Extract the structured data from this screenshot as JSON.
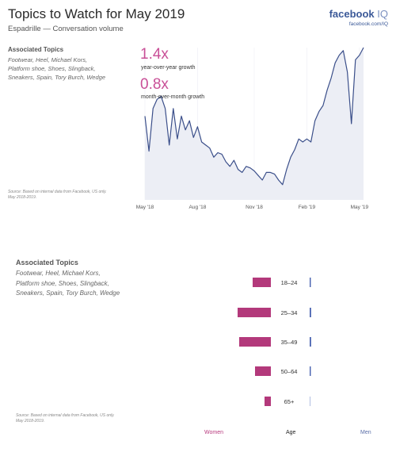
{
  "header": {
    "title": "Topics to Watch for May 2019",
    "subtitle": "Espadrille — Conversation volume",
    "brand_main": "facebook",
    "brand_iq": "IQ",
    "brand_url": "facebook.com/IQ"
  },
  "topics_top": {
    "title": "Associated Topics",
    "lines": [
      "Footwear, Heel, Michael Kors,",
      "Platform shoe, Shoes, Slingback,",
      "Sneakers, Spain, Tory Burch, Wedge"
    ]
  },
  "topics_bottom": {
    "title": "Associated Topics",
    "lines": [
      "Footwear, Heel, Michael Kors,",
      "Platform shoe, Shoes, Slingback,",
      "Sneakers, Spain, Tory Burch, Wedge"
    ]
  },
  "source_top": [
    "Source: Based on internal data from Facebook, US only.",
    "May 2018-2019."
  ],
  "source_bottom": [
    "Source: Based on internal data from Facebook, US only.",
    "May 2018-2019."
  ],
  "kpis": [
    {
      "value": "1.4x",
      "label": "year-over-year growth"
    },
    {
      "value": "0.8x",
      "label": "month-over-month growth"
    }
  ],
  "footer": {
    "women": "Women",
    "age": "Age",
    "men": "Men"
  },
  "colors": {
    "line": "#3b4f8a",
    "area": "#eceef5",
    "women": "#b3397b",
    "men": "#4862b0",
    "accent": "#c94f97"
  },
  "chart_data": [
    {
      "type": "area",
      "title": "",
      "xlabel": "",
      "ylabel": "",
      "x_ticks": [
        "May '18",
        "Aug '18",
        "Nov '18",
        "Feb '19",
        "May '19"
      ],
      "x_tick_index": [
        0,
        13,
        27,
        40,
        53
      ],
      "ylim": [
        0,
        100
      ],
      "series": [
        {
          "values": [
            55,
            32,
            60,
            66,
            68,
            60,
            36,
            60,
            40,
            55,
            46,
            52,
            41,
            48,
            38,
            36,
            34,
            28,
            31,
            30,
            25,
            22,
            26,
            20,
            18,
            22,
            21,
            19,
            16,
            13,
            18,
            18,
            17,
            13,
            10,
            20,
            28,
            33,
            40,
            38,
            40,
            38,
            52,
            58,
            62,
            72,
            80,
            90,
            95,
            98,
            84,
            50,
            92,
            95,
            100
          ]
        }
      ]
    },
    {
      "type": "bar",
      "orientation": "horizontal",
      "categories": [
        "18–24",
        "25–34",
        "35–49",
        "50–64",
        "65+"
      ],
      "series": [
        {
          "name": "Women",
          "values": [
            23,
            42,
            40,
            20,
            8
          ]
        },
        {
          "name": "Men",
          "values": [
            1.2,
            1.5,
            1.5,
            1.2,
            0.8
          ]
        }
      ]
    }
  ]
}
